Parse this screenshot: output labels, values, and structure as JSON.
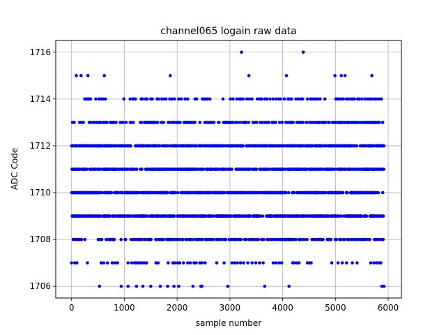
{
  "chart_data": {
    "type": "scatter",
    "title": "channel065 logain raw data",
    "xlabel": "sample number",
    "ylabel": "ADC Code",
    "xlim": [
      -300,
      6250
    ],
    "ylim": [
      1705.5,
      1716.5
    ],
    "xticks": [
      0,
      1000,
      2000,
      3000,
      4000,
      5000,
      6000
    ],
    "yticks": [
      1706,
      1708,
      1710,
      1712,
      1714,
      1716
    ],
    "grid": true,
    "marker_color": "#0000ff",
    "series": [
      {
        "x_range": [
          0,
          5920
        ],
        "dense_levels": [
          1708,
          1709,
          1710,
          1711,
          1712,
          1713
        ],
        "sparse_points": {
          "1716": [
            3220,
            4390
          ],
          "1715": [
            90,
            180,
            310,
            620,
            1870,
            3360,
            4070,
            4990,
            5110,
            5180,
            5690
          ],
          "1714": [
            250,
            280,
            310,
            330,
            360,
            460,
            520,
            560,
            600,
            640,
            990,
            1110,
            1160,
            1190,
            1210,
            1320,
            1340,
            1400,
            1430,
            1500,
            1530,
            1620,
            1650,
            1710,
            1750,
            1790,
            1860,
            1900,
            1950,
            2030,
            2080,
            2150,
            2200,
            2340,
            2370,
            2480,
            2510,
            2540,
            2570,
            2620,
            2870,
            3010,
            3060,
            3130,
            3180,
            3210,
            3250,
            3320,
            3370,
            3420,
            3520,
            3570,
            3600,
            3660,
            3700,
            3760,
            3820,
            3880,
            3930,
            3960,
            4030,
            4100,
            4130,
            4170,
            4250,
            4300,
            4350,
            4380,
            4470,
            4530,
            4560,
            4600,
            4630,
            4660,
            4710,
            4800,
            5010,
            5040,
            5070,
            5110,
            5150,
            5210,
            5250,
            5300,
            5330,
            5360,
            5420,
            5450,
            5500,
            5560,
            5610,
            5650,
            5690,
            5740,
            5770,
            5820,
            5870
          ],
          "1707": [
            0,
            60,
            100,
            300,
            560,
            610,
            680,
            770,
            820,
            870,
            1070,
            1140,
            1190,
            1220,
            1260,
            1300,
            1350,
            1400,
            1420,
            1600,
            1640,
            1830,
            1920,
            1960,
            2010,
            2050,
            2120,
            2200,
            2250,
            2320,
            2360,
            2430,
            2470,
            2530,
            2750,
            2890,
            3040,
            3090,
            3140,
            3200,
            3260,
            3340,
            3420,
            3490,
            3560,
            3630,
            3820,
            3870,
            3930,
            3980,
            4190,
            4220,
            4270,
            4310,
            4470,
            4510,
            4540,
            4930,
            5050,
            5130,
            5210,
            5320,
            5410,
            5670,
            5730,
            5780,
            5830,
            5860
          ],
          "1706": [
            530,
            940,
            1070,
            1230,
            1350,
            1500,
            1680,
            1820,
            1940,
            2030,
            2300,
            2450,
            2470,
            2960,
            3660,
            4120,
            5880,
            5920
          ]
        }
      }
    ]
  }
}
